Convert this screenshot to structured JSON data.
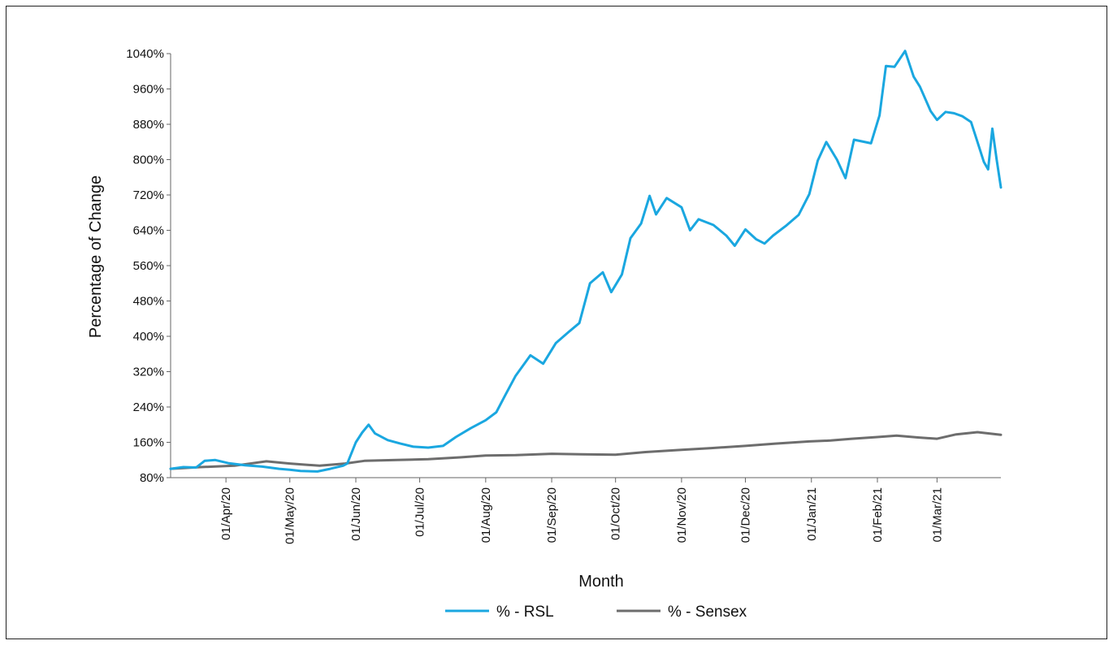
{
  "chart_data": {
    "type": "line",
    "title": "",
    "xlabel": "Month",
    "ylabel": "Percentage of Change",
    "ylim": [
      80,
      1040
    ],
    "y_ticks": [
      80,
      160,
      240,
      320,
      400,
      480,
      560,
      640,
      720,
      800,
      880,
      960,
      1040
    ],
    "y_tick_labels": [
      "80%",
      "160%",
      "240%",
      "320%",
      "400%",
      "480%",
      "560%",
      "640%",
      "720%",
      "800%",
      "880%",
      "960%",
      "1040%"
    ],
    "xlim": [
      "2020-03-06",
      "2021-03-31"
    ],
    "x_tick_dates": [
      "2020-04-01",
      "2020-05-01",
      "2020-06-01",
      "2020-07-01",
      "2020-08-01",
      "2020-09-01",
      "2020-10-01",
      "2020-11-01",
      "2020-12-01",
      "2021-01-01",
      "2021-02-01",
      "2021-03-01"
    ],
    "x_tick_labels": [
      "01/Apr/20",
      "01/May/20",
      "01/Jun/20",
      "01/Jul/20",
      "01/Aug/20",
      "01/Sep/20",
      "01/Oct/20",
      "01/Nov/20",
      "01/Dec/20",
      "01/Jan/21",
      "01/Feb/21",
      "01/Mar/21"
    ],
    "grid": false,
    "legend_position": "bottom",
    "series": [
      {
        "name": "% - RSL",
        "color": "#1aa7e0",
        "points": [
          [
            "2020-03-06",
            100
          ],
          [
            "2020-03-12",
            104
          ],
          [
            "2020-03-18",
            103
          ],
          [
            "2020-03-22",
            118
          ],
          [
            "2020-03-27",
            120
          ],
          [
            "2020-04-02",
            113
          ],
          [
            "2020-04-10",
            108
          ],
          [
            "2020-04-18",
            105
          ],
          [
            "2020-04-26",
            100
          ],
          [
            "2020-05-01",
            98
          ],
          [
            "2020-05-06",
            95
          ],
          [
            "2020-05-14",
            94
          ],
          [
            "2020-05-20",
            100
          ],
          [
            "2020-05-26",
            107
          ],
          [
            "2020-05-28",
            112
          ],
          [
            "2020-06-01",
            160
          ],
          [
            "2020-06-04",
            182
          ],
          [
            "2020-06-07",
            200
          ],
          [
            "2020-06-10",
            180
          ],
          [
            "2020-06-16",
            165
          ],
          [
            "2020-06-22",
            157
          ],
          [
            "2020-06-28",
            150
          ],
          [
            "2020-07-05",
            148
          ],
          [
            "2020-07-12",
            152
          ],
          [
            "2020-07-18",
            172
          ],
          [
            "2020-07-25",
            192
          ],
          [
            "2020-08-01",
            210
          ],
          [
            "2020-08-06",
            228
          ],
          [
            "2020-08-10",
            265
          ],
          [
            "2020-08-15",
            310
          ],
          [
            "2020-08-22",
            357
          ],
          [
            "2020-08-28",
            338
          ],
          [
            "2020-09-03",
            385
          ],
          [
            "2020-09-09",
            410
          ],
          [
            "2020-09-14",
            430
          ],
          [
            "2020-09-19",
            520
          ],
          [
            "2020-09-25",
            545
          ],
          [
            "2020-09-29",
            500
          ],
          [
            "2020-10-04",
            540
          ],
          [
            "2020-10-08",
            622
          ],
          [
            "2020-10-13",
            655
          ],
          [
            "2020-10-17",
            718
          ],
          [
            "2020-10-20",
            676
          ],
          [
            "2020-10-25",
            713
          ],
          [
            "2020-11-01",
            692
          ],
          [
            "2020-11-05",
            640
          ],
          [
            "2020-11-09",
            665
          ],
          [
            "2020-11-16",
            652
          ],
          [
            "2020-11-22",
            628
          ],
          [
            "2020-11-26",
            605
          ],
          [
            "2020-12-01",
            642
          ],
          [
            "2020-12-06",
            620
          ],
          [
            "2020-12-10",
            610
          ],
          [
            "2020-12-14",
            628
          ],
          [
            "2020-12-20",
            650
          ],
          [
            "2020-12-26",
            675
          ],
          [
            "2020-12-31",
            722
          ],
          [
            "2021-01-04",
            798
          ],
          [
            "2021-01-08",
            840
          ],
          [
            "2021-01-13",
            800
          ],
          [
            "2021-01-17",
            758
          ],
          [
            "2021-01-21",
            845
          ],
          [
            "2021-01-29",
            837
          ],
          [
            "2021-02-02",
            900
          ],
          [
            "2021-02-05",
            1012
          ],
          [
            "2021-02-09",
            1010
          ],
          [
            "2021-02-14",
            1046
          ],
          [
            "2021-02-18",
            988
          ],
          [
            "2021-02-21",
            965
          ],
          [
            "2021-02-26",
            910
          ],
          [
            "2021-03-01",
            890
          ],
          [
            "2021-03-05",
            908
          ],
          [
            "2021-03-09",
            905
          ],
          [
            "2021-03-13",
            898
          ],
          [
            "2021-03-17",
            885
          ],
          [
            "2021-03-20",
            840
          ],
          [
            "2021-03-23",
            795
          ],
          [
            "2021-03-25",
            778
          ],
          [
            "2021-03-27",
            870
          ],
          [
            "2021-03-29",
            800
          ],
          [
            "2021-03-31",
            737
          ]
        ]
      },
      {
        "name": "% - Sensex",
        "color": "#6d6d6d",
        "points": [
          [
            "2020-03-06",
            100
          ],
          [
            "2020-03-20",
            104
          ],
          [
            "2020-04-05",
            107
          ],
          [
            "2020-04-20",
            117
          ],
          [
            "2020-05-01",
            112
          ],
          [
            "2020-05-15",
            107
          ],
          [
            "2020-05-27",
            112
          ],
          [
            "2020-06-05",
            118
          ],
          [
            "2020-06-20",
            120
          ],
          [
            "2020-07-05",
            122
          ],
          [
            "2020-07-20",
            126
          ],
          [
            "2020-08-01",
            130
          ],
          [
            "2020-08-15",
            131
          ],
          [
            "2020-09-01",
            134
          ],
          [
            "2020-09-15",
            133
          ],
          [
            "2020-10-01",
            132
          ],
          [
            "2020-10-15",
            138
          ],
          [
            "2020-11-01",
            143
          ],
          [
            "2020-11-15",
            147
          ],
          [
            "2020-12-01",
            152
          ],
          [
            "2020-12-15",
            157
          ],
          [
            "2020-12-31",
            162
          ],
          [
            "2021-01-10",
            164
          ],
          [
            "2021-01-20",
            168
          ],
          [
            "2021-02-01",
            172
          ],
          [
            "2021-02-10",
            175
          ],
          [
            "2021-02-20",
            171
          ],
          [
            "2021-03-01",
            168
          ],
          [
            "2021-03-10",
            178
          ],
          [
            "2021-03-20",
            183
          ],
          [
            "2021-03-31",
            177
          ]
        ]
      }
    ]
  }
}
